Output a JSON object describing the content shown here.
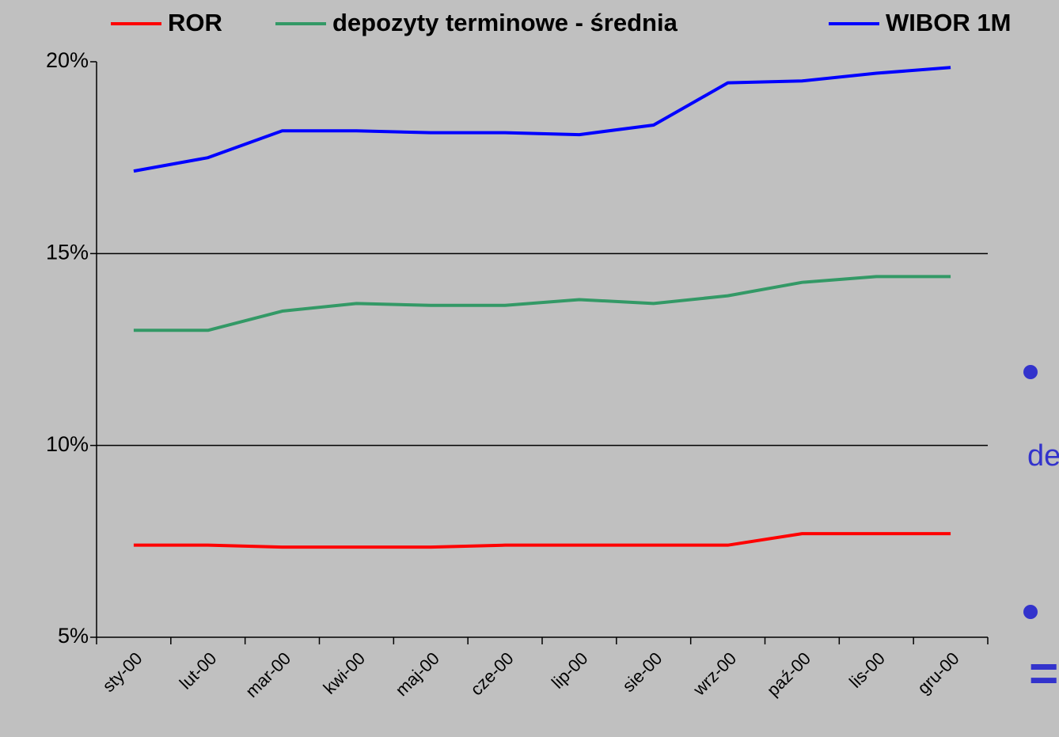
{
  "chart_data": {
    "type": "line",
    "categories": [
      "sty-00",
      "lut-00",
      "mar-00",
      "kwi-00",
      "maj-00",
      "cze-00",
      "lip-00",
      "sie-00",
      "wrz-00",
      "paź-00",
      "lis-00",
      "gru-00"
    ],
    "series": [
      {
        "name": "ROR",
        "color": "#ff0000",
        "values": [
          7.4,
          7.4,
          7.35,
          7.35,
          7.35,
          7.4,
          7.4,
          7.4,
          7.4,
          7.7,
          7.7,
          7.7
        ]
      },
      {
        "name": "depozyty terminowe - średnia",
        "color": "#339966",
        "values": [
          13.0,
          13.0,
          13.5,
          13.7,
          13.65,
          13.65,
          13.8,
          13.7,
          13.9,
          14.25,
          14.4,
          14.4
        ]
      },
      {
        "name": "WIBOR 1M",
        "color": "#0000ff",
        "values": [
          17.15,
          17.5,
          18.2,
          18.2,
          18.15,
          18.15,
          18.1,
          18.35,
          19.45,
          19.5,
          19.7,
          19.85
        ]
      }
    ],
    "ylim": [
      5,
      20
    ],
    "yticks": [
      {
        "value": 5,
        "label": "5%"
      },
      {
        "value": 10,
        "label": "10%"
      },
      {
        "value": 15,
        "label": "15%"
      },
      {
        "value": 20,
        "label": "20%"
      }
    ],
    "grid": true,
    "legend": "top"
  },
  "slide_text": [
    "de",
    "="
  ]
}
